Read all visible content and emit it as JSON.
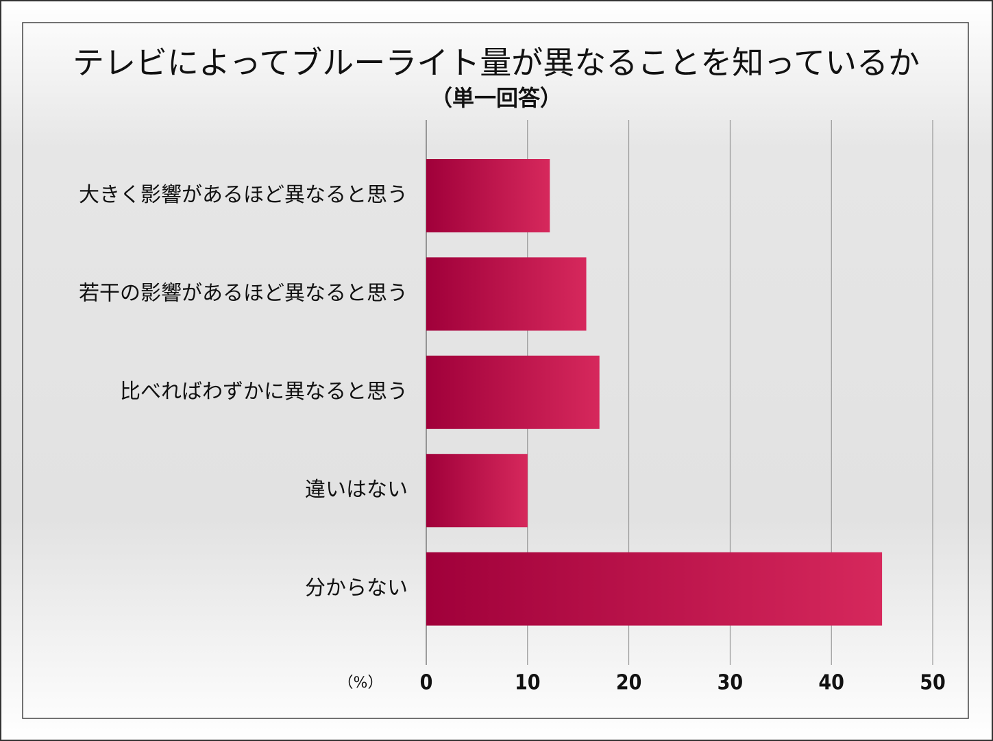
{
  "chart_data": {
    "type": "barh",
    "title": "テレビによってブルーライト量が異なることを知っているか",
    "subtitle": "（単一回答）",
    "x_unit_label": "（%）",
    "categories": [
      "大きく影響があるほど異なると思う",
      "若干の影響があるほど異なると思う",
      "比べればわずかに異なると思う",
      "違いはない",
      "分からない"
    ],
    "values": [
      12.2,
      15.8,
      17.1,
      10.0,
      45.0
    ],
    "gradient": [
      "#a0003a",
      "#d6285c"
    ],
    "xlim": [
      0,
      50
    ],
    "xticks": [
      0,
      10,
      20,
      30,
      40,
      50
    ],
    "grid": true
  }
}
